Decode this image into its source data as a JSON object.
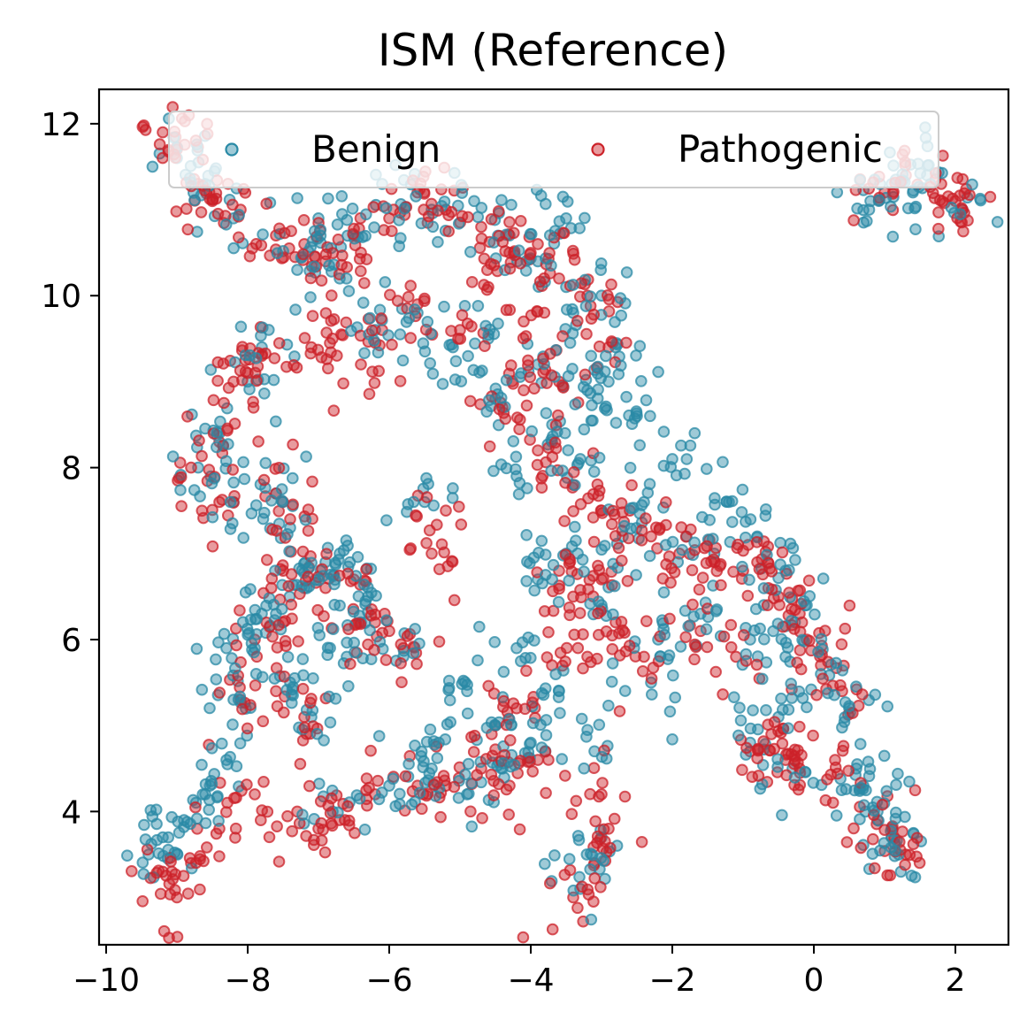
{
  "chart_data": {
    "type": "scatter",
    "title": "ISM (Reference)",
    "xlabel": "",
    "ylabel": "",
    "xlim": [
      -10.1,
      2.75
    ],
    "ylim": [
      2.45,
      12.4
    ],
    "xticks": [
      -10,
      -8,
      -6,
      -4,
      -2,
      0,
      2
    ],
    "xtick_labels": [
      "−10",
      "−8",
      "−6",
      "−4",
      "−2",
      "0",
      "2"
    ],
    "yticks": [
      4,
      6,
      8,
      10,
      12
    ],
    "ytick_labels": [
      "4",
      "6",
      "8",
      "10",
      "12"
    ],
    "grid": false,
    "legend": {
      "placement": "top",
      "columns": 2
    },
    "series": [
      {
        "name": "Benign",
        "color": "#2a8aa6",
        "approx_count": 1500,
        "sample_points": [
          [
            -9.4,
            3.5
          ],
          [
            -9.2,
            3.7
          ],
          [
            -8.9,
            3.9
          ],
          [
            -8.6,
            4.2
          ],
          [
            -8.3,
            4.6
          ],
          [
            -8.2,
            5.3
          ],
          [
            -7.9,
            5.9
          ],
          [
            -7.6,
            6.3
          ],
          [
            -7.2,
            6.6
          ],
          [
            -6.9,
            6.9
          ],
          [
            -6.7,
            7.0
          ],
          [
            -6.3,
            6.5
          ],
          [
            -6.6,
            5.8
          ],
          [
            -7.1,
            5.1
          ],
          [
            -6.8,
            4.0
          ],
          [
            -6.0,
            4.3
          ],
          [
            -5.4,
            4.5
          ],
          [
            -4.9,
            4.2
          ],
          [
            -4.4,
            4.5
          ],
          [
            -4.0,
            4.8
          ],
          [
            -3.6,
            5.4
          ],
          [
            -3.1,
            4.7
          ],
          [
            -3.0,
            3.7
          ],
          [
            -3.3,
            3.1
          ],
          [
            -3.0,
            6.4
          ],
          [
            -2.7,
            7.2
          ],
          [
            -2.4,
            7.6
          ],
          [
            -2.0,
            8.1
          ],
          [
            -3.5,
            7.0
          ],
          [
            -3.7,
            8.3
          ],
          [
            -3.2,
            8.9
          ],
          [
            -2.8,
            9.4
          ],
          [
            -3.4,
            9.8
          ],
          [
            -3.9,
            10.4
          ],
          [
            -4.3,
            10.7
          ],
          [
            -4.6,
            9.5
          ],
          [
            -5.1,
            9.4
          ],
          [
            -5.6,
            9.8
          ],
          [
            -6.2,
            9.6
          ],
          [
            -6.7,
            10.2
          ],
          [
            -7.0,
            10.9
          ],
          [
            -7.3,
            10.3
          ],
          [
            -7.8,
            9.4
          ],
          [
            -8.0,
            9.0
          ],
          [
            -8.4,
            8.4
          ],
          [
            -8.7,
            8.0
          ],
          [
            -8.2,
            7.6
          ],
          [
            -7.6,
            7.7
          ],
          [
            -7.4,
            7.3
          ],
          [
            -8.2,
            10.9
          ],
          [
            -8.6,
            11.3
          ],
          [
            -9.0,
            11.6
          ],
          [
            -6.1,
            11.3
          ],
          [
            -5.4,
            11.0
          ],
          [
            -4.8,
            11.1
          ],
          [
            -3.5,
            10.9
          ],
          [
            -3.9,
            9.2
          ],
          [
            -3.3,
            8.1
          ],
          [
            -2.5,
            8.6
          ],
          [
            -1.8,
            7.2
          ],
          [
            -1.2,
            7.6
          ],
          [
            -0.8,
            7.2
          ],
          [
            -0.4,
            6.8
          ],
          [
            -0.1,
            6.4
          ],
          [
            -0.9,
            6.0
          ],
          [
            -0.4,
            5.8
          ],
          [
            0.1,
            5.6
          ],
          [
            0.5,
            5.2
          ],
          [
            0.6,
            4.5
          ],
          [
            0.7,
            4.3
          ],
          [
            -0.5,
            5.1
          ],
          [
            -0.9,
            4.8
          ],
          [
            -0.3,
            4.5
          ],
          [
            0.9,
            4.0
          ],
          [
            1.1,
            3.7
          ],
          [
            1.2,
            3.5
          ],
          [
            -4.5,
            5.0
          ],
          [
            -4.9,
            5.4
          ],
          [
            -5.3,
            4.8
          ],
          [
            -5.8,
            5.8
          ],
          [
            -6.4,
            6.2
          ],
          [
            -7.8,
            6.3
          ],
          [
            -8.3,
            5.9
          ],
          [
            -7.4,
            5.5
          ],
          [
            0.8,
            11.1
          ],
          [
            1.1,
            11.3
          ],
          [
            1.6,
            11.4
          ],
          [
            2.1,
            11.0
          ],
          [
            1.4,
            11.2
          ],
          [
            -2.3,
            5.5
          ],
          [
            -2.2,
            6.0
          ],
          [
            -1.6,
            6.3
          ],
          [
            -3.9,
            6.7
          ],
          [
            -4.2,
            5.9
          ],
          [
            -5.5,
            7.6
          ],
          [
            -4.5,
            8.8
          ],
          [
            -4.2,
            7.9
          ],
          [
            -3.0,
            10.0
          ],
          [
            -2.9,
            9.0
          ],
          [
            -6.5,
            10.7
          ]
        ]
      },
      {
        "name": "Pathogenic",
        "color": "#cc2229",
        "approx_count": 1500,
        "sample_points": [
          [
            -9.2,
            11.9
          ],
          [
            -9.0,
            11.7
          ],
          [
            -8.7,
            11.3
          ],
          [
            -8.5,
            11.1
          ],
          [
            -8.1,
            11.0
          ],
          [
            -7.6,
            10.7
          ],
          [
            -7.2,
            10.6
          ],
          [
            -6.9,
            10.4
          ],
          [
            -6.4,
            10.5
          ],
          [
            -6.0,
            10.9
          ],
          [
            -5.6,
            11.2
          ],
          [
            -5.2,
            11.0
          ],
          [
            -4.7,
            10.8
          ],
          [
            -4.3,
            10.5
          ],
          [
            -3.9,
            10.6
          ],
          [
            -3.6,
            10.2
          ],
          [
            -3.2,
            10.0
          ],
          [
            -2.9,
            9.4
          ],
          [
            -3.6,
            9.0
          ],
          [
            -4.1,
            8.9
          ],
          [
            -4.4,
            8.7
          ],
          [
            -3.9,
            8.2
          ],
          [
            -3.4,
            7.8
          ],
          [
            -3.0,
            7.5
          ],
          [
            -2.6,
            7.5
          ],
          [
            -2.3,
            7.2
          ],
          [
            -1.9,
            7.0
          ],
          [
            -1.4,
            6.9
          ],
          [
            -1.0,
            6.8
          ],
          [
            -0.8,
            6.9
          ],
          [
            -0.5,
            6.5
          ],
          [
            -0.2,
            6.3
          ],
          [
            -0.1,
            6.0
          ],
          [
            0.1,
            5.7
          ],
          [
            0.4,
            5.4
          ],
          [
            -0.6,
            4.9
          ],
          [
            -0.9,
            4.7
          ],
          [
            -0.4,
            4.6
          ],
          [
            0.9,
            3.9
          ],
          [
            1.1,
            3.7
          ],
          [
            1.3,
            3.5
          ],
          [
            -3.0,
            6.7
          ],
          [
            -3.4,
            6.5
          ],
          [
            -3.6,
            6.8
          ],
          [
            -2.8,
            6.2
          ],
          [
            -3.2,
            5.8
          ],
          [
            -3.7,
            5.7
          ],
          [
            -4.2,
            5.2
          ],
          [
            -4.5,
            5.0
          ],
          [
            -4.7,
            4.5
          ],
          [
            -4.3,
            4.3
          ],
          [
            -3.9,
            4.6
          ],
          [
            -3.0,
            4.2
          ],
          [
            -2.9,
            3.8
          ],
          [
            -3.1,
            3.4
          ],
          [
            -3.4,
            3.0
          ],
          [
            -5.2,
            4.3
          ],
          [
            -5.6,
            4.3
          ],
          [
            -6.2,
            4.2
          ],
          [
            -6.7,
            3.9
          ],
          [
            -7.0,
            3.8
          ],
          [
            -7.3,
            4.0
          ],
          [
            -7.9,
            4.2
          ],
          [
            -8.4,
            3.8
          ],
          [
            -8.8,
            3.4
          ],
          [
            -9.2,
            3.3
          ],
          [
            -9.0,
            3.0
          ],
          [
            -8.1,
            5.3
          ],
          [
            -7.6,
            5.4
          ],
          [
            -7.2,
            5.1
          ],
          [
            -7.9,
            6.0
          ],
          [
            -7.5,
            6.2
          ],
          [
            -6.9,
            6.6
          ],
          [
            -6.5,
            6.7
          ],
          [
            -6.2,
            6.2
          ],
          [
            -6.0,
            6.1
          ],
          [
            -5.8,
            5.9
          ],
          [
            -7.6,
            7.7
          ],
          [
            -7.4,
            7.4
          ],
          [
            -7.5,
            6.8
          ],
          [
            -8.0,
            9.1
          ],
          [
            -8.2,
            9.0
          ],
          [
            -7.8,
            9.3
          ],
          [
            -8.4,
            8.3
          ],
          [
            -8.8,
            8.0
          ],
          [
            -8.4,
            7.6
          ],
          [
            -6.1,
            9.6
          ],
          [
            -5.6,
            9.9
          ],
          [
            -5.0,
            9.6
          ],
          [
            -4.6,
            10.1
          ],
          [
            -4.1,
            9.7
          ],
          [
            -6.4,
            9.2
          ],
          [
            -6.8,
            9.5
          ],
          [
            -7.1,
            9.4
          ],
          [
            -5.2,
            7.5
          ],
          [
            -5.4,
            7.0
          ],
          [
            1.0,
            11.2
          ],
          [
            1.3,
            11.4
          ],
          [
            1.8,
            11.3
          ],
          [
            2.0,
            11.1
          ],
          [
            2.1,
            11.0
          ],
          [
            -2.4,
            5.8
          ],
          [
            -1.1,
            5.8
          ],
          [
            -1.6,
            6.1
          ],
          [
            -0.2,
            4.5
          ],
          [
            0.3,
            4.6
          ]
        ]
      }
    ]
  }
}
